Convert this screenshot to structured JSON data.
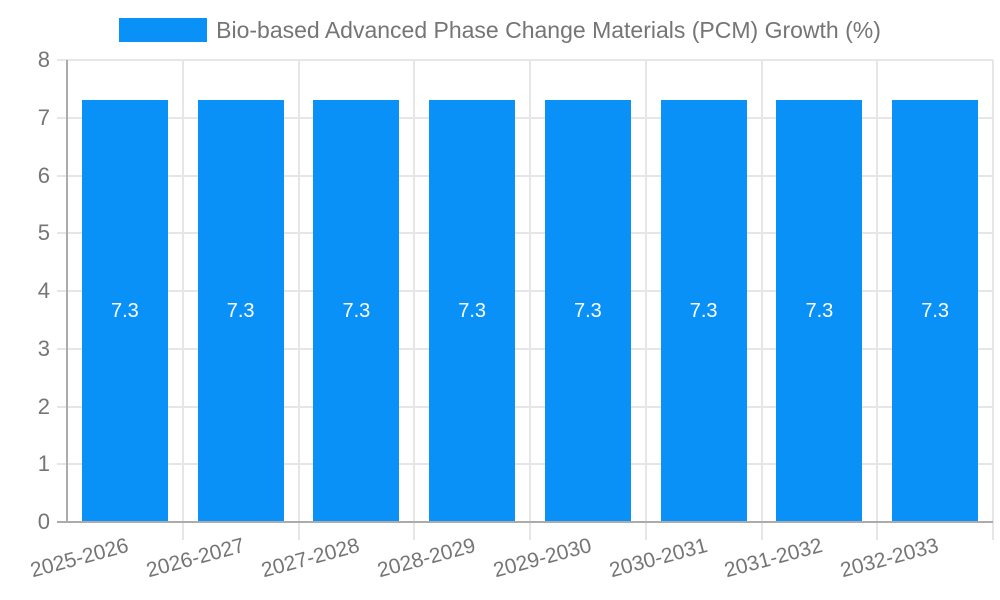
{
  "chart_data": {
    "type": "bar",
    "title": "Bio-based Advanced Phase Change Materials (PCM) Growth (%)",
    "legend_position": "top",
    "categories": [
      "2025-2026",
      "2026-2027",
      "2027-2028",
      "2028-2029",
      "2029-2030",
      "2030-2031",
      "2031-2032",
      "2032-2033"
    ],
    "values": [
      7.3,
      7.3,
      7.3,
      7.3,
      7.3,
      7.3,
      7.3,
      7.3
    ],
    "value_labels": [
      "7.3",
      "7.3",
      "7.3",
      "7.3",
      "7.3",
      "7.3",
      "7.3",
      "7.3"
    ],
    "xlabel": "",
    "ylabel": "",
    "ylim": [
      0,
      8
    ],
    "yticks": [
      0,
      1,
      2,
      3,
      4,
      5,
      6,
      7,
      8
    ],
    "grid": true,
    "colors": {
      "bar": "#0A91F8",
      "value_label": "#FFFFFF",
      "tick_text": "#757575",
      "legend_text": "#757575",
      "gridline": "#E6E6E6",
      "axis_line": "#ABABAB",
      "background": "#FFFFFF"
    }
  }
}
